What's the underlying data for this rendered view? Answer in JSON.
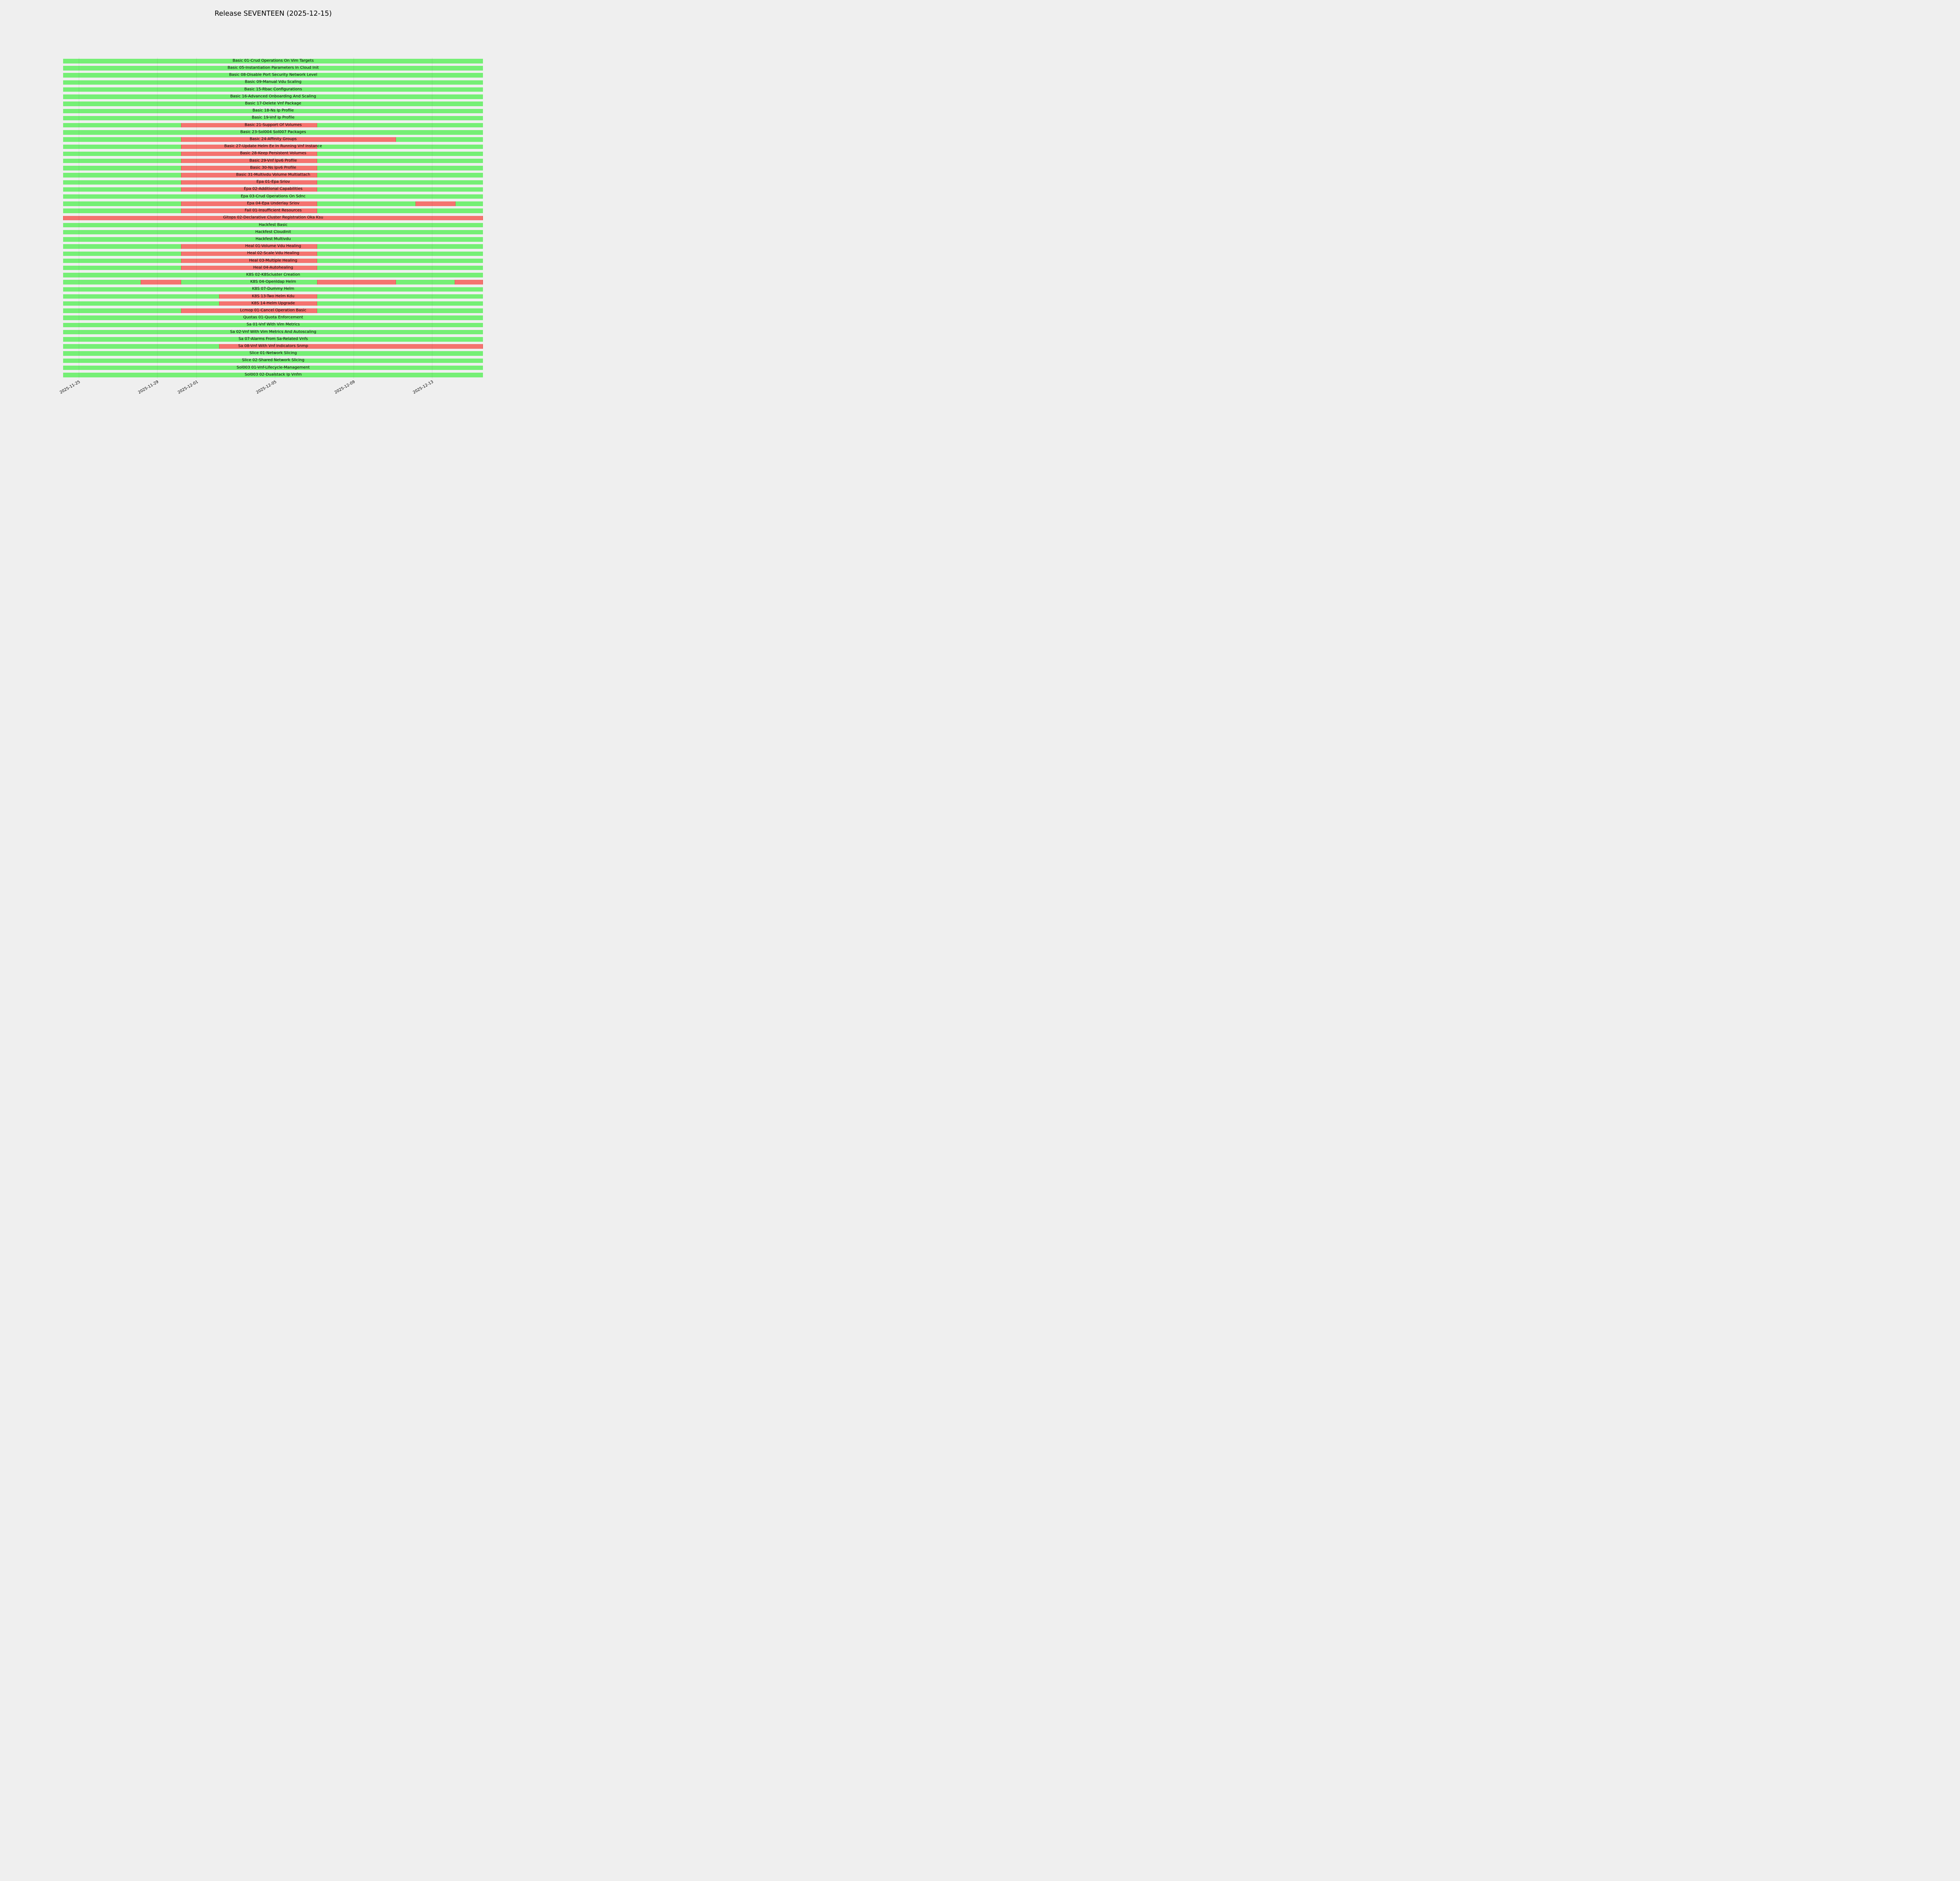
{
  "title": "Release SEVENTEEN (2025-12-15)",
  "colors": {
    "background": "#efefef",
    "pass_green": "#75ef75",
    "fail_red": "#f4736f",
    "gridline": "rgba(40,40,40,0.10)",
    "text": "#000000"
  },
  "chart_data": {
    "type": "bar",
    "subtype": "status-timeline-gantt",
    "title": "Release SEVENTEEN (2025-12-15)",
    "xlabel": "",
    "ylabel": "",
    "grid": true,
    "legend_position": "none",
    "x_axis": {
      "reference_date": "2025-11-25",
      "unit": "days since 2025-11-25 00:00",
      "domain_days": [
        -0.8,
        20.6
      ],
      "ticks": [
        {
          "day": 0,
          "label": "2025-11-25"
        },
        {
          "day": 4,
          "label": "2025-11-29"
        },
        {
          "day": 6,
          "label": "2025-12-01"
        },
        {
          "day": 10,
          "label": "2025-12-05"
        },
        {
          "day": 14,
          "label": "2025-12-09"
        },
        {
          "day": 18,
          "label": "2025-12-13"
        }
      ]
    },
    "status_colors": {
      "pass": "#75ef75",
      "fail": "#f4736f"
    },
    "rows": [
      {
        "label": "Basic 01-Crud Operations On Vim Targets",
        "fail_windows": []
      },
      {
        "label": "Basic 05-Instantiation Parameters In Cloud Init",
        "fail_windows": []
      },
      {
        "label": "Basic 08-Disable Port Security Network Level",
        "fail_windows": []
      },
      {
        "label": "Basic 09-Manual Vdu Scaling",
        "fail_windows": []
      },
      {
        "label": "Basic 15-Rbac Configurations",
        "fail_windows": []
      },
      {
        "label": "Basic 16-Advanced Onboarding And Scaling",
        "fail_windows": []
      },
      {
        "label": "Basic 17-Delete Vnf Package",
        "fail_windows": []
      },
      {
        "label": "Basic 18-Ns Ip Profile",
        "fail_windows": []
      },
      {
        "label": "Basic 19-Vnf Ip Profile",
        "fail_windows": []
      },
      {
        "label": "Basic 21-Support Of Volumes",
        "fail_windows": [
          [
            5.2,
            12.15
          ]
        ]
      },
      {
        "label": "Basic 23-Sol004 Sol007 Packages",
        "fail_windows": []
      },
      {
        "label": "Basic 24-Affinity Groups",
        "fail_windows": [
          [
            5.2,
            16.15
          ]
        ]
      },
      {
        "label": "Basic 27-Update Helm Ee In Running Vnf Instance",
        "fail_windows": [
          [
            5.2,
            12.15
          ]
        ]
      },
      {
        "label": "Basic 28-Keep Persistent Volumes",
        "fail_windows": [
          [
            5.2,
            12.15
          ]
        ]
      },
      {
        "label": "Basic 29-Vnf Ipv6 Profile",
        "fail_windows": [
          [
            5.2,
            12.15
          ]
        ]
      },
      {
        "label": "Basic 30-Ns Ipv6 Profile",
        "fail_windows": [
          [
            5.2,
            12.15
          ]
        ]
      },
      {
        "label": "Basic 31-Multivdu Volume Multiattach",
        "fail_windows": [
          [
            5.2,
            12.15
          ]
        ]
      },
      {
        "label": "Epa 01-Epa Sriov",
        "fail_windows": [
          [
            5.2,
            12.15
          ]
        ]
      },
      {
        "label": "Epa 02-Additional Capabilities",
        "fail_windows": [
          [
            5.2,
            12.15
          ]
        ]
      },
      {
        "label": "Epa 03-Crud Operations On Sdnc",
        "fail_windows": []
      },
      {
        "label": "Epa 04-Epa Underlay Sriov",
        "fail_windows": [
          [
            5.2,
            12.15
          ],
          [
            17.15,
            19.2
          ]
        ]
      },
      {
        "label": "Fail 01-Insufficient Resources",
        "fail_windows": [
          [
            5.2,
            12.15
          ]
        ]
      },
      {
        "label": "Gitops 02-Declarative Cluster Registration Oka Ksu",
        "fail_windows": [
          [
            -0.8,
            20.6
          ]
        ]
      },
      {
        "label": "Hackfest Basic",
        "fail_windows": []
      },
      {
        "label": "Hackfest Cloudinit",
        "fail_windows": []
      },
      {
        "label": "Hackfest Multivdu",
        "fail_windows": []
      },
      {
        "label": "Heal 01-Volume Vdu Healing",
        "fail_windows": [
          [
            5.2,
            12.15
          ]
        ]
      },
      {
        "label": "Heal 02-Scale Vdu Healing",
        "fail_windows": [
          [
            5.2,
            12.15
          ]
        ]
      },
      {
        "label": "Heal 03-Multiple Healing",
        "fail_windows": [
          [
            5.2,
            12.15
          ]
        ]
      },
      {
        "label": "Heal 04-Autohealing",
        "fail_windows": [
          [
            5.2,
            12.15
          ]
        ]
      },
      {
        "label": "K8S 02-K8Scluster Creation",
        "fail_windows": []
      },
      {
        "label": "K8S 04-Openldap Helm",
        "fail_windows": [
          [
            3.15,
            5.2
          ],
          [
            12.15,
            16.15
          ],
          [
            19.15,
            20.6
          ]
        ]
      },
      {
        "label": "K8S 07-Dummy Helm",
        "fail_windows": []
      },
      {
        "label": "K8S 13-Two Helm Kdu",
        "fail_windows": [
          [
            7.15,
            12.15
          ]
        ]
      },
      {
        "label": "K8S 14-Helm Upgrade",
        "fail_windows": [
          [
            7.15,
            12.15
          ]
        ]
      },
      {
        "label": "Lcmop 01-Cancel Operation Basic",
        "fail_windows": [
          [
            5.2,
            12.15
          ]
        ]
      },
      {
        "label": "Quotas 01-Quota Enforcement",
        "fail_windows": []
      },
      {
        "label": "Sa 01-Vnf With Vim Metrics",
        "fail_windows": []
      },
      {
        "label": "Sa 02-Vnf With Vim Metrics And Autoscaling",
        "fail_windows": []
      },
      {
        "label": "Sa 07-Alarms From Sa-Related Vnfs",
        "fail_windows": []
      },
      {
        "label": "Sa 08-Vnf With Vnf Indicators Snmp",
        "fail_windows": [
          [
            7.15,
            20.6
          ]
        ]
      },
      {
        "label": "Slice 01-Network Slicing",
        "fail_windows": []
      },
      {
        "label": "Slice 02-Shared Network Slicing",
        "fail_windows": []
      },
      {
        "label": "Sol003 01-Vnf-Lifecycle-Management",
        "fail_windows": []
      },
      {
        "label": "Sol003 02-Dualstack Ip Vnfm",
        "fail_windows": []
      }
    ]
  }
}
